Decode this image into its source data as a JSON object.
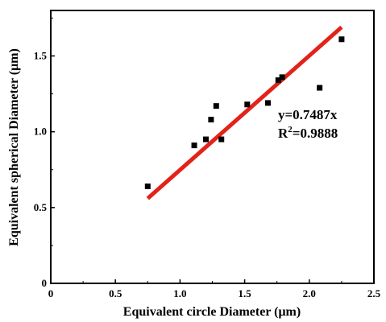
{
  "chart_data": {
    "type": "scatter",
    "title": "",
    "xlabel": "Equivalent circle Diameter (μm)",
    "ylabel": "Equivalent spherical Diameter (μm)",
    "xlim": [
      0,
      2.5
    ],
    "ylim": [
      0,
      1.8
    ],
    "x_ticks": [
      "0",
      "0.5",
      "1.0",
      "1.5",
      "2.0",
      "2.5"
    ],
    "y_ticks": [
      "0",
      "0.5",
      "1.0",
      "1.5"
    ],
    "x_tick_values": [
      0,
      0.5,
      1.0,
      1.5,
      2.0,
      2.5
    ],
    "y_tick_values": [
      0,
      0.5,
      1.0,
      1.5
    ],
    "grid": false,
    "legend": "none",
    "series": [
      {
        "marker": "square",
        "color": "#000000",
        "points": [
          {
            "x": 0.75,
            "y": 0.64
          },
          {
            "x": 1.11,
            "y": 0.91
          },
          {
            "x": 1.2,
            "y": 0.95
          },
          {
            "x": 1.24,
            "y": 1.08
          },
          {
            "x": 1.28,
            "y": 1.17
          },
          {
            "x": 1.32,
            "y": 0.95
          },
          {
            "x": 1.52,
            "y": 1.18
          },
          {
            "x": 1.68,
            "y": 1.19
          },
          {
            "x": 1.76,
            "y": 1.34
          },
          {
            "x": 1.79,
            "y": 1.36
          },
          {
            "x": 2.08,
            "y": 1.29
          },
          {
            "x": 2.25,
            "y": 1.61
          }
        ]
      }
    ],
    "fit_line": {
      "color": "#e32219",
      "x": [
        0.75,
        2.25
      ],
      "y": [
        0.56,
        1.69
      ]
    },
    "annotations": {
      "equation_main": "y=0.7487x",
      "r2_label": "R",
      "r2_superscript": "2",
      "r2_value": "=0.9888"
    }
  }
}
